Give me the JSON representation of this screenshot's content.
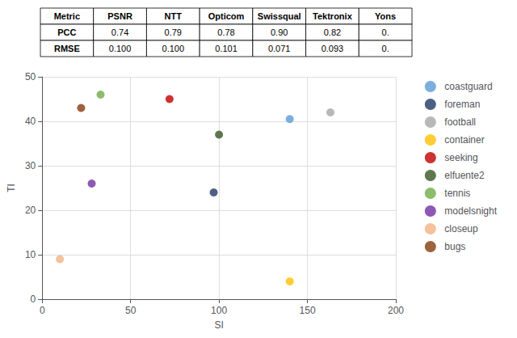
{
  "chart_data": [
    {
      "type": "table",
      "columns": [
        "Metric",
        "PSNR",
        "NTT",
        "Opticom",
        "Swissqual",
        "Tektronix",
        "Yons"
      ],
      "rows": [
        [
          "PCC",
          "0.74",
          "0.79",
          "0.78",
          "0.90",
          "0.82",
          "0."
        ],
        [
          "RMSE",
          "0.100",
          "0.100",
          "0.101",
          "0.071",
          "0.093",
          "0."
        ]
      ]
    },
    {
      "type": "scatter",
      "xlabel": "SI",
      "ylabel": "TI",
      "series": [
        {
          "name": "coastguard",
          "color": "#5B9BD5",
          "x": [
            140
          ],
          "values": [
            40.5
          ]
        },
        {
          "name": "foreman",
          "color": "#203864",
          "x": [
            97
          ],
          "values": [
            24
          ]
        },
        {
          "name": "football",
          "color": "#A6A6A6",
          "x": [
            163
          ],
          "values": [
            42
          ]
        },
        {
          "name": "container",
          "color": "#FFC000",
          "x": [
            140
          ],
          "values": [
            4
          ]
        },
        {
          "name": "seeking",
          "color": "#C00000",
          "x": [
            72
          ],
          "values": [
            45
          ]
        },
        {
          "name": "elfuente2",
          "color": "#375623",
          "x": [
            100
          ],
          "values": [
            37
          ]
        },
        {
          "name": "tennis",
          "color": "#70AD47",
          "x": [
            33
          ],
          "values": [
            46
          ]
        },
        {
          "name": "modelsnight",
          "color": "#7030A0",
          "x": [
            28
          ],
          "values": [
            26
          ]
        },
        {
          "name": "closeup",
          "color": "#F4B183",
          "x": [
            10
          ],
          "values": [
            9
          ]
        },
        {
          "name": "bugs",
          "color": "#843C0C",
          "x": [
            22
          ],
          "values": [
            43
          ]
        }
      ],
      "xlim": [
        0,
        200
      ],
      "ylim": [
        0,
        50
      ],
      "xticks": [
        0,
        50,
        100,
        150,
        200
      ],
      "yticks": [
        0,
        10,
        20,
        30,
        40,
        50
      ],
      "grid": true,
      "legend": "right"
    }
  ]
}
